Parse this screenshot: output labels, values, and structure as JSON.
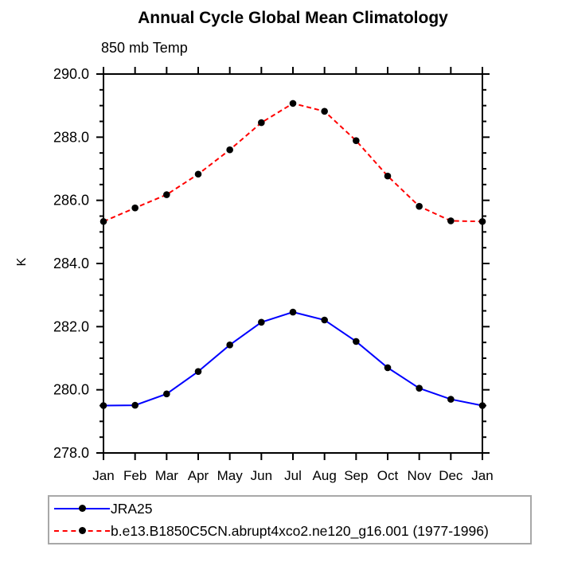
{
  "title": "Annual Cycle Global Mean Climatology",
  "subtitle": "850 mb Temp",
  "chart_data": {
    "type": "line",
    "title": "Annual Cycle Global Mean Climatology",
    "subtitle": "850 mb Temp",
    "xlabel": "",
    "ylabel": "K",
    "categories": [
      "Jan",
      "Feb",
      "Mar",
      "Apr",
      "May",
      "Jun",
      "Jul",
      "Aug",
      "Sep",
      "Oct",
      "Nov",
      "Dec",
      "Jan"
    ],
    "ylim": [
      278.0,
      290.0
    ],
    "ytick_major": 2.0,
    "ytick_minor": 0.5,
    "ytick_labels": [
      "278.0",
      "280.0",
      "282.0",
      "284.0",
      "286.0",
      "288.0",
      "290.0"
    ],
    "grid": false,
    "legend_position": "bottom-left",
    "axis_color": "#000000",
    "legend_border_color": "#a8a8a8",
    "series": [
      {
        "name": "JRA25",
        "color": "#0000ff",
        "line_style": "solid",
        "marker": "circle",
        "marker_color": "#000000",
        "values": [
          279.5,
          279.51,
          279.87,
          280.58,
          281.42,
          282.14,
          282.46,
          282.21,
          281.53,
          280.7,
          280.05,
          279.7,
          279.5
        ]
      },
      {
        "name": "b.e13.B1850C5CN.abrupt4xco2.ne120_g16.001 (1977-1996)",
        "color": "#ff0000",
        "line_style": "dashed",
        "marker": "circle",
        "marker_color": "#000000",
        "values": [
          285.33,
          285.76,
          286.18,
          286.83,
          287.6,
          288.46,
          289.07,
          288.82,
          287.89,
          286.77,
          285.81,
          285.35,
          285.33
        ]
      }
    ]
  }
}
